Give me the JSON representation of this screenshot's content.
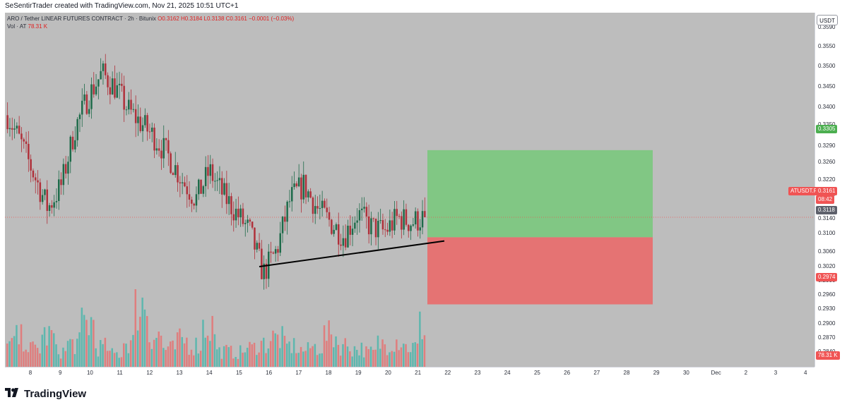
{
  "header": {
    "creator": "SeSentirTrader created with TradingView.com, Nov 21, 2025 10:51 UTC+1"
  },
  "legend": {
    "symbol": "ARO / Tether LINEAR FUTURES CONTRACT · 2h · Bitunix",
    "ohlc": "O0.3162  H0.3184  L0.3138  C0.3161  −0.0001 (−0.03%)",
    "vol_label": "Vol · AT",
    "vol_value": "78.31 K"
  },
  "currency_button": "USDT",
  "price_axis": {
    "ticks": [
      "0.3590",
      "0.3550",
      "0.3500",
      "0.3450",
      "0.3400",
      "0.3350",
      "0.3290",
      "0.3260",
      "0.3220",
      "0.3180",
      "0.3140",
      "0.3100",
      "0.3060",
      "0.3020",
      "0.2990",
      "0.2960",
      "0.2930",
      "0.2900",
      "0.2870",
      "0.2840"
    ]
  },
  "price_labels": {
    "take_profit": "0.3305",
    "symbol_tag": "ATUSDT.P",
    "last_price": "0.3161",
    "countdown": "08:42",
    "entry": "0.3118",
    "stop_loss": "0.2974",
    "volume": "78.31 K"
  },
  "time_axis": {
    "ticks": [
      "8",
      "9",
      "10",
      "11",
      "12",
      "13",
      "14",
      "15",
      "16",
      "17",
      "18",
      "19",
      "20",
      "21",
      "22",
      "23",
      "24",
      "25",
      "26",
      "27",
      "28",
      "29",
      "30",
      "Dec",
      "2",
      "3",
      "4"
    ]
  },
  "colors": {
    "up": "#26a69a",
    "down": "#ef5350",
    "candle_up": "#1e6b4a",
    "candle_down": "#b0303a",
    "profit_zone": "#81c784",
    "loss_zone": "#e57373",
    "background": "#bdbdbd"
  },
  "chart_data": {
    "type": "candlestick",
    "timeframe": "2h",
    "ylim": [
      0.284,
      0.36
    ],
    "position": {
      "entry": 0.3118,
      "take_profit": 0.3305,
      "stop_loss": 0.2974
    },
    "trendline": {
      "from": 0.3055,
      "to": 0.311
    },
    "last_price": 0.3161,
    "closes": [
      0.338,
      0.332,
      0.325,
      0.318,
      0.323,
      0.335,
      0.342,
      0.347,
      0.344,
      0.339,
      0.336,
      0.333,
      0.329,
      0.324,
      0.32,
      0.326,
      0.321,
      0.317,
      0.313,
      0.304,
      0.309,
      0.32,
      0.323,
      0.318,
      0.315,
      0.312,
      0.317,
      0.314,
      0.313,
      0.316,
      0.315,
      0.3161
    ],
    "volumes_k": [
      40,
      55,
      35,
      60,
      30,
      45,
      85,
      38,
      25,
      48,
      120,
      60,
      35,
      50,
      42,
      78,
      30,
      28,
      36,
      45,
      55,
      40,
      32,
      38,
      60,
      42,
      35,
      28,
      45,
      52,
      38,
      78.31
    ]
  }
}
